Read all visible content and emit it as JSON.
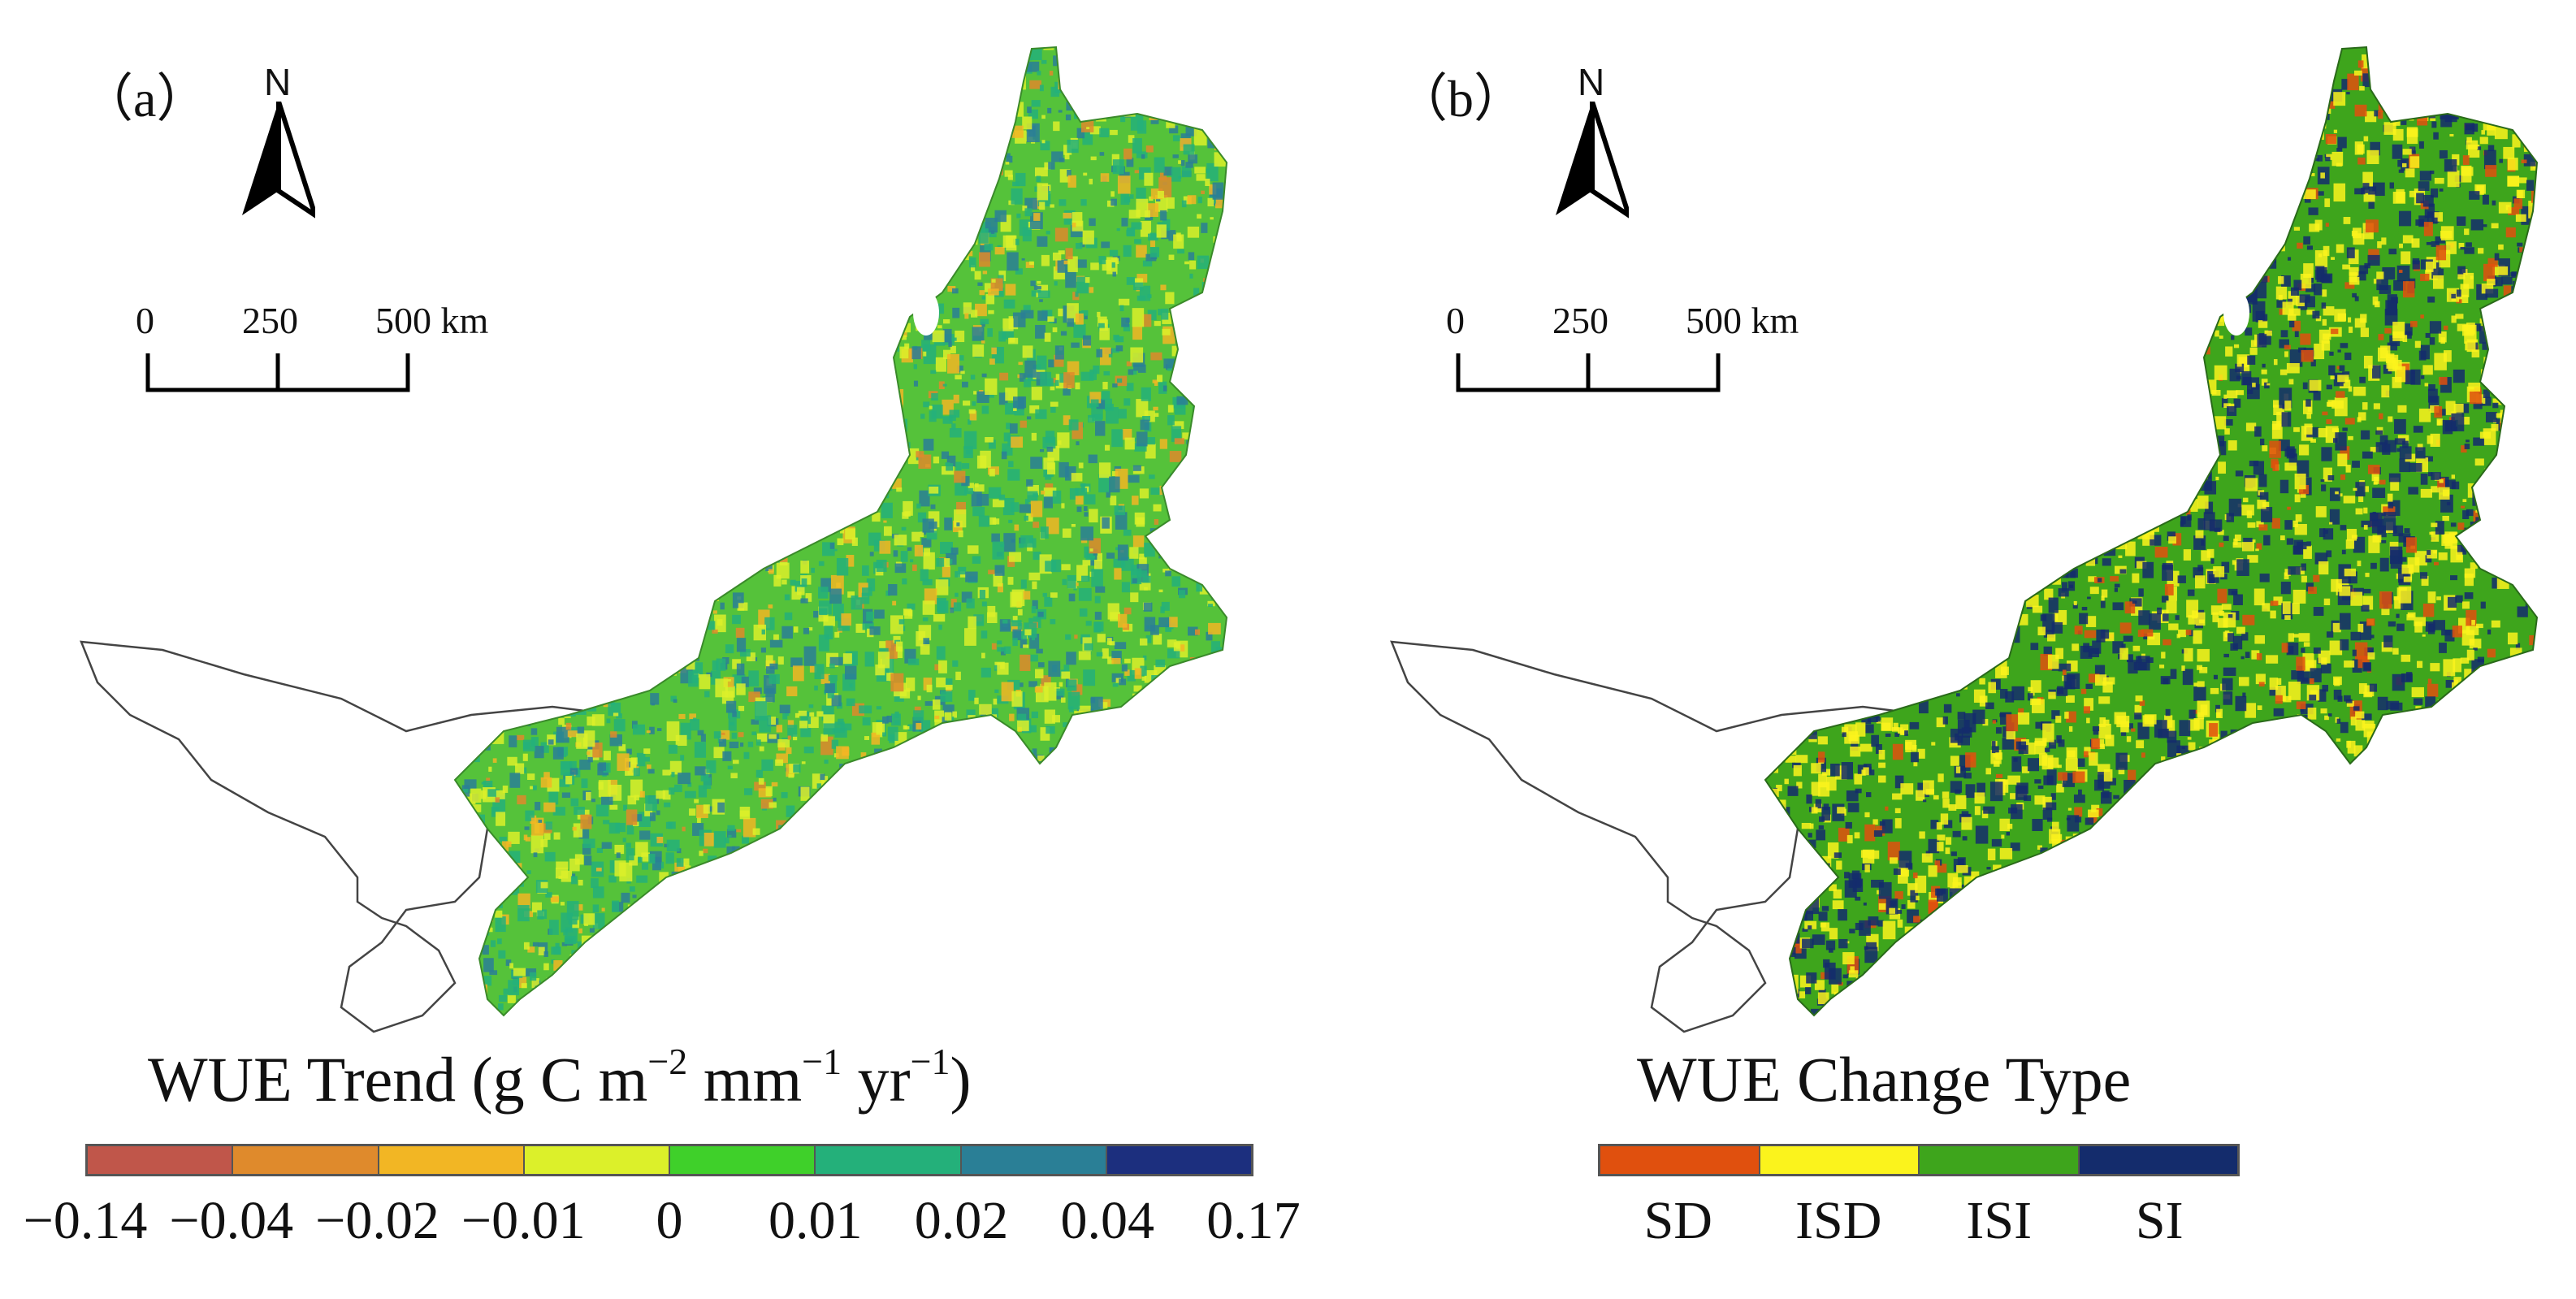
{
  "panel_a": {
    "label": "（a）",
    "north": "N",
    "scale": {
      "ticks": [
        "0",
        "250",
        "500 km"
      ]
    },
    "legend": {
      "title_prefix": "WUE Trend (g C m",
      "exp1": "−2",
      "mid1": " mm",
      "exp2": "−1",
      "mid2": " yr",
      "exp3": "−1",
      "suffix": ")",
      "colors": [
        "#c0564a",
        "#df8a2c",
        "#f2b624",
        "#dcf02a",
        "#3fd02a",
        "#24b07a",
        "#2a7f96",
        "#1c2f7e"
      ],
      "ticks": [
        "−0.14",
        "−0.04",
        "−0.02",
        "−0.01",
        "0",
        "0.01",
        "0.02",
        "0.04",
        "0.17"
      ]
    }
  },
  "panel_b": {
    "label": "（b）",
    "north": "N",
    "scale": {
      "ticks": [
        "0",
        "250",
        "500 km"
      ]
    },
    "legend": {
      "title": "WUE Change Type",
      "colors": [
        "#e0500e",
        "#fbf31c",
        "#3ea51c",
        "#142c6c"
      ],
      "categories": [
        "SD",
        "ISD",
        "ISI",
        "SI"
      ]
    }
  },
  "map_colors": {
    "a_base": "#55c23a",
    "a_patches": [
      "#24b07a",
      "#2a7f96",
      "#dcf02a",
      "#f2b624",
      "#df8a2c"
    ],
    "b_base": "#3ea51c",
    "b_patches": [
      "#142c6c",
      "#fbf31c",
      "#e0500e"
    ],
    "outline": "#444444"
  }
}
